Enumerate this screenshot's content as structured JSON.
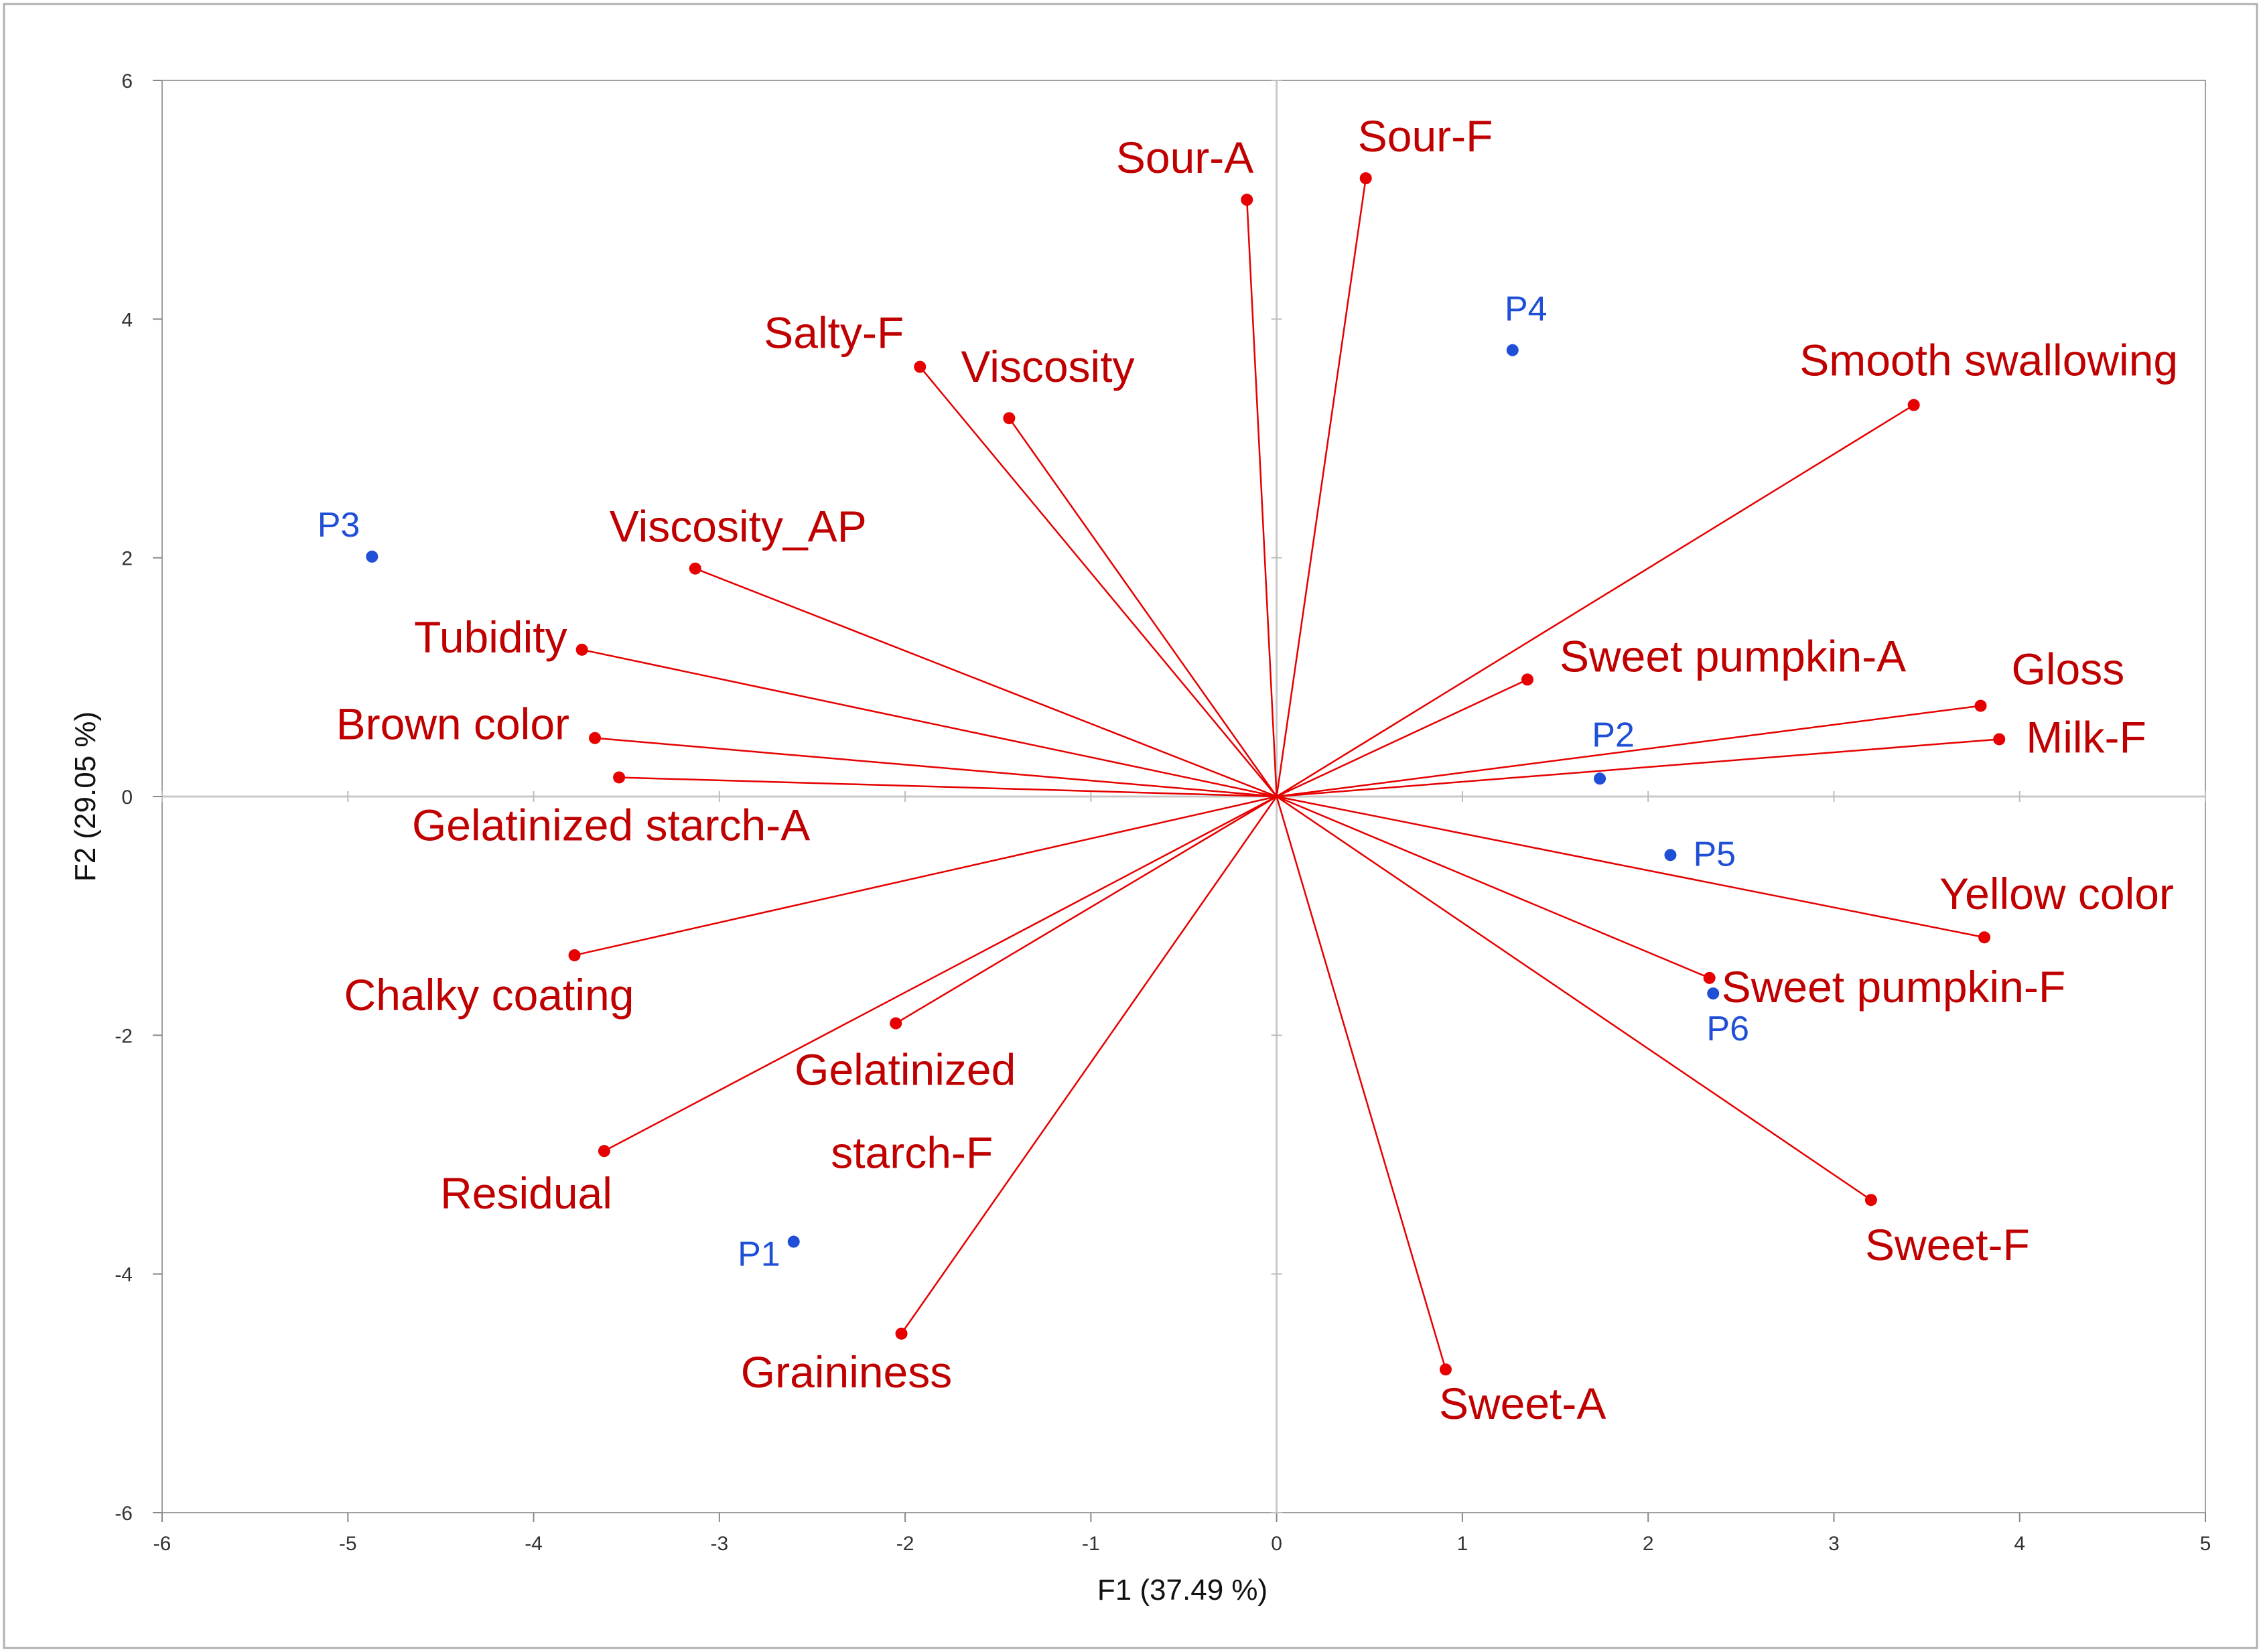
{
  "chart_data": {
    "type": "scatter",
    "subtype": "pca-biplot",
    "title": "",
    "xlabel": "F1 (37.49 %)",
    "ylabel": "F2 (29.05 %)",
    "xlim": [
      -6,
      5
    ],
    "ylim": [
      -6,
      6
    ],
    "xticks": [
      -6,
      -5,
      -4,
      -3,
      -2,
      -1,
      0,
      1,
      2,
      3,
      4,
      5
    ],
    "yticks": [
      -6,
      -4,
      -2,
      0,
      2,
      4,
      6
    ],
    "grid": false,
    "colors": {
      "variables": "#e60000",
      "variable_text": "#c00000",
      "observations": "#1f4fd6"
    },
    "variables": [
      {
        "label": "Sour-A",
        "x": -0.16,
        "y": 5.0
      },
      {
        "label": "Sour-F",
        "x": 0.48,
        "y": 5.18
      },
      {
        "label": "Salty-F",
        "x": -1.92,
        "y": 3.6
      },
      {
        "label": "Viscosity",
        "x": -1.44,
        "y": 3.17
      },
      {
        "label": "Smooth swallowing",
        "x": 3.43,
        "y": 3.28
      },
      {
        "label": "Viscosity_AP",
        "x": -3.13,
        "y": 1.91
      },
      {
        "label": "Tubidity",
        "x": -3.74,
        "y": 1.23
      },
      {
        "label": "Brown color",
        "x": -3.67,
        "y": 0.49
      },
      {
        "label": "Gelatinized starch-A",
        "x": -3.54,
        "y": 0.16
      },
      {
        "label": "Sweet pumpkin-A",
        "x": 1.35,
        "y": 0.98
      },
      {
        "label": "Gloss",
        "x": 3.79,
        "y": 0.76
      },
      {
        "label": "Milk-F",
        "x": 3.89,
        "y": 0.48
      },
      {
        "label": "Yellow color",
        "x": 3.81,
        "y": -1.18
      },
      {
        "label": "Chalky coating",
        "x": -3.78,
        "y": -1.33
      },
      {
        "label": "Sweet pumpkin-F",
        "x": 2.33,
        "y": -1.52
      },
      {
        "label": "Gelatinized starch-F",
        "x": -2.05,
        "y": -1.9
      },
      {
        "label": "Residual",
        "x": -3.62,
        "y": -2.97
      },
      {
        "label": "Sweet-F",
        "x": 3.2,
        "y": -3.38
      },
      {
        "label": "Graininess",
        "x": -2.02,
        "y": -4.5
      },
      {
        "label": "Sweet-A",
        "x": 0.91,
        "y": -4.8
      }
    ],
    "observations": [
      {
        "label": "P1",
        "x": -2.6,
        "y": -3.73
      },
      {
        "label": "P2",
        "x": 1.74,
        "y": 0.15
      },
      {
        "label": "P3",
        "x": -4.87,
        "y": 2.01
      },
      {
        "label": "P4",
        "x": 1.27,
        "y": 3.74
      },
      {
        "label": "P5",
        "x": 2.12,
        "y": -0.49
      },
      {
        "label": "P6",
        "x": 2.35,
        "y": -1.65
      }
    ]
  }
}
